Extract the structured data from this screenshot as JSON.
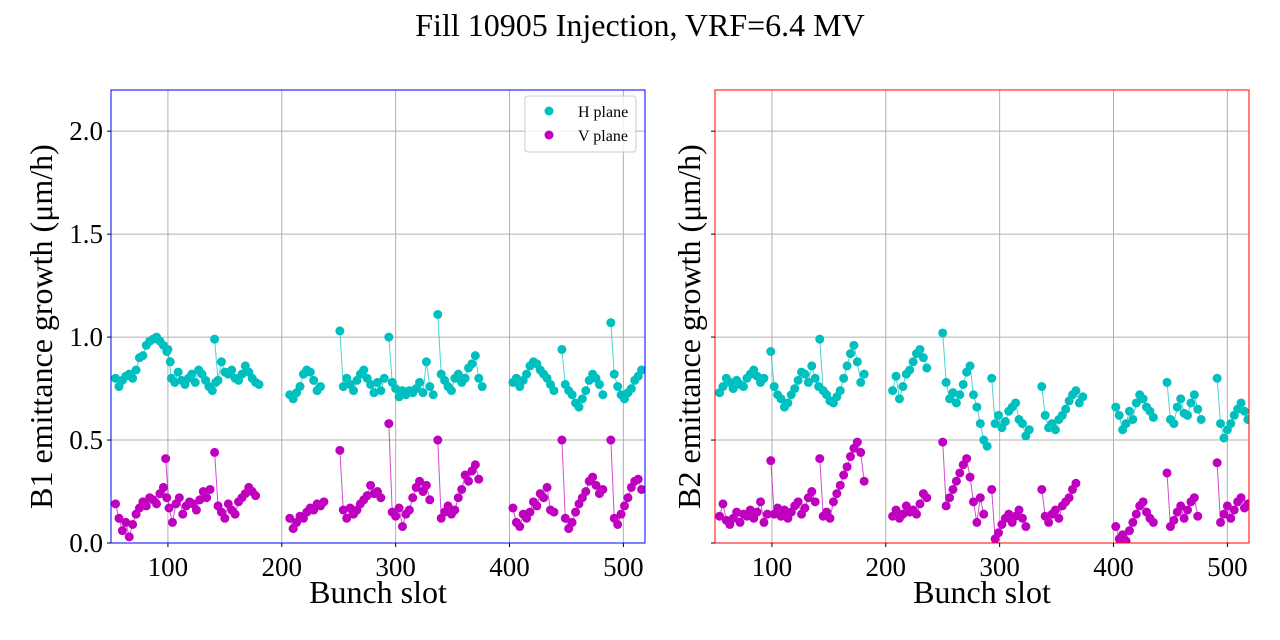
{
  "chart_data": {
    "type": "scatter",
    "title": "Fill 10905 Injection, VRF=6.4 MV",
    "colors": {
      "H plane": "#00bfbf",
      "V plane": "#bf00bf",
      "B1_frame": "#0000ff",
      "B2_frame": "#ff0000"
    },
    "panels": [
      {
        "name": "B1",
        "xlabel": "Bunch slot",
        "ylabel": "B1 emittance growth (μm/h)",
        "xlim": [
          50,
          519
        ],
        "ylim": [
          0.0,
          2.2
        ],
        "xticks": [
          "100",
          "200",
          "300",
          "400",
          "500"
        ],
        "xtick_values": [
          100,
          200,
          300,
          400,
          500
        ],
        "yticks": [
          "0.0",
          "0.5",
          "1.0",
          "1.5",
          "2.0"
        ],
        "ytick_values": [
          0.0,
          0.5,
          1.0,
          1.5,
          2.0
        ],
        "grid": true,
        "legend": {
          "position": "top-right",
          "entries": [
            "H plane",
            "V plane"
          ]
        },
        "series": [
          {
            "name": "H plane",
            "trains": [
              {
                "start": 54,
                "step": 3,
                "y": [
                  0.8,
                  0.76,
                  0.79,
                  0.81,
                  0.82,
                  0.8,
                  0.84,
                  0.9,
                  0.91,
                  0.96,
                  0.98,
                  0.99,
                  1.0,
                  0.98,
                  0.96,
                  0.93,
                  0.88
                ]
              },
              {
                "start": 100,
                "step": 3,
                "y": [
                  0.94,
                  0.8,
                  0.78,
                  0.83,
                  0.79,
                  0.77,
                  0.8,
                  0.82,
                  0.78,
                  0.84,
                  0.82,
                  0.79,
                  0.76,
                  0.74,
                  0.78
                ]
              },
              {
                "start": 141,
                "step": 3,
                "y": [
                  0.99,
                  0.79,
                  0.88,
                  0.83,
                  0.82,
                  0.84,
                  0.8,
                  0.79,
                  0.82,
                  0.86,
                  0.83,
                  0.8,
                  0.78,
                  0.77
                ]
              },
              {
                "start": 207,
                "step": 3,
                "y": [
                  0.72,
                  0.7,
                  0.73,
                  0.76,
                  0.82,
                  0.84,
                  0.83,
                  0.79,
                  0.74,
                  0.76
                ]
              },
              {
                "start": 251,
                "step": 3,
                "y": [
                  1.03,
                  0.76,
                  0.8,
                  0.77,
                  0.74,
                  0.79,
                  0.82,
                  0.84,
                  0.8,
                  0.77,
                  0.73,
                  0.78,
                  0.74,
                  0.8
                ]
              },
              {
                "start": 294,
                "step": 3,
                "y": [
                  1.0,
                  0.78,
                  0.75,
                  0.71,
                  0.74,
                  0.72,
                  0.74,
                  0.73,
                  0.75,
                  0.78,
                  0.73,
                  0.88,
                  0.76,
                  0.72
                ]
              },
              {
                "start": 337,
                "step": 3,
                "y": [
                  1.11,
                  0.82,
                  0.79,
                  0.76,
                  0.74,
                  0.8,
                  0.82,
                  0.78,
                  0.8,
                  0.85,
                  0.87,
                  0.91,
                  0.8,
                  0.76
                ]
              },
              {
                "start": 403,
                "step": 3,
                "y": [
                  0.78,
                  0.8,
                  0.76,
                  0.79,
                  0.82,
                  0.86,
                  0.88,
                  0.87,
                  0.84,
                  0.82,
                  0.8,
                  0.77,
                  0.74
                ]
              },
              {
                "start": 446,
                "step": 3,
                "y": [
                  0.94,
                  0.77,
                  0.74,
                  0.72,
                  0.68,
                  0.66,
                  0.7,
                  0.74,
                  0.79,
                  0.82,
                  0.8,
                  0.77,
                  0.72
                ]
              },
              {
                "start": 489,
                "step": 3,
                "y": [
                  1.07,
                  0.82,
                  0.76,
                  0.72,
                  0.7,
                  0.73,
                  0.75,
                  0.79,
                  0.81,
                  0.84
                ]
              }
            ]
          },
          {
            "name": "V plane",
            "trains": [
              {
                "start": 54,
                "step": 3,
                "y": [
                  0.19,
                  0.12,
                  0.06,
                  0.1,
                  0.03,
                  0.09,
                  0.14,
                  0.17,
                  0.2,
                  0.18,
                  0.22,
                  0.21,
                  0.19,
                  0.24,
                  0.27,
                  0.22
                ]
              },
              {
                "start": 98,
                "step": 3,
                "y": [
                  0.41,
                  0.17,
                  0.1,
                  0.19,
                  0.22,
                  0.14,
                  0.18,
                  0.2,
                  0.19,
                  0.16,
                  0.21,
                  0.25,
                  0.22,
                  0.26
                ]
              },
              {
                "start": 141,
                "step": 3,
                "y": [
                  0.44,
                  0.18,
                  0.15,
                  0.12,
                  0.19,
                  0.16,
                  0.14,
                  0.2,
                  0.22,
                  0.24,
                  0.27,
                  0.25,
                  0.23
                ]
              },
              {
                "start": 207,
                "step": 3,
                "y": [
                  0.12,
                  0.07,
                  0.1,
                  0.13,
                  0.12,
                  0.15,
                  0.17,
                  0.16,
                  0.19,
                  0.18,
                  0.2
                ]
              },
              {
                "start": 251,
                "step": 3,
                "y": [
                  0.45,
                  0.16,
                  0.12,
                  0.17,
                  0.14,
                  0.16,
                  0.19,
                  0.21,
                  0.23,
                  0.28,
                  0.24,
                  0.25,
                  0.22
                ]
              },
              {
                "start": 294,
                "step": 3,
                "y": [
                  0.58,
                  0.15,
                  0.13,
                  0.17,
                  0.08,
                  0.14,
                  0.16,
                  0.22,
                  0.27,
                  0.3,
                  0.25,
                  0.28,
                  0.21
                ]
              },
              {
                "start": 337,
                "step": 3,
                "y": [
                  0.5,
                  0.12,
                  0.15,
                  0.18,
                  0.14,
                  0.16,
                  0.22,
                  0.26,
                  0.33,
                  0.3,
                  0.35,
                  0.38,
                  0.31
                ]
              },
              {
                "start": 403,
                "step": 3,
                "y": [
                  0.17,
                  0.1,
                  0.08,
                  0.14,
                  0.12,
                  0.15,
                  0.2,
                  0.18,
                  0.24,
                  0.22,
                  0.27,
                  0.16,
                  0.15
                ]
              },
              {
                "start": 446,
                "step": 3,
                "y": [
                  0.5,
                  0.12,
                  0.07,
                  0.1,
                  0.15,
                  0.19,
                  0.22,
                  0.25,
                  0.3,
                  0.32,
                  0.28,
                  0.24,
                  0.26
                ]
              },
              {
                "start": 489,
                "step": 3,
                "y": [
                  0.5,
                  0.12,
                  0.09,
                  0.14,
                  0.18,
                  0.22,
                  0.27,
                  0.3,
                  0.31,
                  0.26
                ]
              }
            ]
          }
        ]
      },
      {
        "name": "B2",
        "xlabel": "Bunch slot",
        "ylabel": "B2 emittance growth (μm/h)",
        "xlim": [
          50,
          519
        ],
        "ylim": [
          0.0,
          2.2
        ],
        "xticks": [
          "100",
          "200",
          "300",
          "400",
          "500"
        ],
        "xtick_values": [
          100,
          200,
          300,
          400,
          500
        ],
        "yticks": [],
        "ytick_values": [
          0.0,
          0.5,
          1.0,
          1.5,
          2.0
        ],
        "grid": true,
        "series": [
          {
            "name": "H plane",
            "trains": [
              {
                "start": 54,
                "step": 3,
                "y": [
                  0.73,
                  0.76,
                  0.8,
                  0.78,
                  0.75,
                  0.79,
                  0.77,
                  0.76,
                  0.8,
                  0.82,
                  0.84,
                  0.81,
                  0.78,
                  0.8
                ]
              },
              {
                "start": 99,
                "step": 3,
                "y": [
                  0.93,
                  0.76,
                  0.72,
                  0.7,
                  0.66,
                  0.68,
                  0.72,
                  0.75,
                  0.79,
                  0.83,
                  0.82,
                  0.78,
                  0.86,
                  0.8,
                  0.76
                ]
              },
              {
                "start": 142,
                "step": 3,
                "y": [
                  0.99,
                  0.74,
                  0.72,
                  0.69,
                  0.68,
                  0.71,
                  0.74,
                  0.8,
                  0.86,
                  0.92,
                  0.96,
                  0.88,
                  0.78,
                  0.82
                ]
              },
              {
                "start": 206,
                "step": 3,
                "y": [
                  0.74,
                  0.81,
                  0.7,
                  0.76,
                  0.82,
                  0.84,
                  0.88,
                  0.92,
                  0.94,
                  0.9,
                  0.85
                ]
              },
              {
                "start": 250,
                "step": 3,
                "y": [
                  1.02,
                  0.78,
                  0.7,
                  0.73,
                  0.68,
                  0.72,
                  0.77,
                  0.83,
                  0.86,
                  0.72,
                  0.66,
                  0.58,
                  0.5,
                  0.47
                ]
              },
              {
                "start": 293,
                "step": 3,
                "y": [
                  0.8,
                  0.58,
                  0.62,
                  0.56,
                  0.59,
                  0.64,
                  0.66,
                  0.68,
                  0.6,
                  0.58,
                  0.52,
                  0.55
                ]
              },
              {
                "start": 337,
                "step": 3,
                "y": [
                  0.76,
                  0.62,
                  0.56,
                  0.58,
                  0.55,
                  0.6,
                  0.62,
                  0.65,
                  0.69,
                  0.72,
                  0.74,
                  0.68,
                  0.71
                ]
              },
              {
                "start": 402,
                "step": 3,
                "y": [
                  0.66,
                  0.62,
                  0.55,
                  0.58,
                  0.64,
                  0.6,
                  0.68,
                  0.72,
                  0.7,
                  0.66,
                  0.64,
                  0.61
                ]
              },
              {
                "start": 447,
                "step": 3,
                "y": [
                  0.78,
                  0.6,
                  0.58,
                  0.66,
                  0.7,
                  0.63,
                  0.62,
                  0.68,
                  0.72,
                  0.65,
                  0.6
                ]
              },
              {
                "start": 491,
                "step": 3,
                "y": [
                  0.8,
                  0.58,
                  0.51,
                  0.55,
                  0.58,
                  0.62,
                  0.65,
                  0.68,
                  0.64,
                  0.6
                ]
              }
            ]
          },
          {
            "name": "V plane",
            "trains": [
              {
                "start": 54,
                "step": 3,
                "y": [
                  0.13,
                  0.19,
                  0.11,
                  0.09,
                  0.12,
                  0.15,
                  0.1,
                  0.14,
                  0.13,
                  0.16,
                  0.12,
                  0.15,
                  0.2,
                  0.1,
                  0.14
                ]
              },
              {
                "start": 99,
                "step": 3,
                "y": [
                  0.4,
                  0.14,
                  0.17,
                  0.13,
                  0.16,
                  0.12,
                  0.15,
                  0.18,
                  0.2,
                  0.14,
                  0.17,
                  0.22,
                  0.25,
                  0.2
                ]
              },
              {
                "start": 142,
                "step": 3,
                "y": [
                  0.41,
                  0.13,
                  0.15,
                  0.12,
                  0.2,
                  0.24,
                  0.28,
                  0.33,
                  0.37,
                  0.42,
                  0.46,
                  0.49,
                  0.44,
                  0.3
                ]
              },
              {
                "start": 206,
                "step": 3,
                "y": [
                  0.13,
                  0.16,
                  0.12,
                  0.14,
                  0.18,
                  0.15,
                  0.16,
                  0.14,
                  0.19,
                  0.24,
                  0.22
                ]
              },
              {
                "start": 250,
                "step": 3,
                "y": [
                  0.49,
                  0.18,
                  0.22,
                  0.26,
                  0.3,
                  0.34,
                  0.38,
                  0.41,
                  0.32,
                  0.2,
                  0.1,
                  0.22,
                  0.14
                ]
              },
              {
                "start": 293,
                "step": 3,
                "y": [
                  0.26,
                  0.02,
                  0.05,
                  0.09,
                  0.12,
                  0.14,
                  0.1,
                  0.13,
                  0.16,
                  0.12,
                  0.08
                ]
              },
              {
                "start": 337,
                "step": 3,
                "y": [
                  0.26,
                  0.13,
                  0.1,
                  0.14,
                  0.16,
                  0.12,
                  0.18,
                  0.2,
                  0.22,
                  0.26,
                  0.29
                ]
              },
              {
                "start": 402,
                "step": 3,
                "y": [
                  0.08,
                  0.02,
                  0.04,
                  0.01,
                  0.06,
                  0.1,
                  0.14,
                  0.18,
                  0.2,
                  0.15,
                  0.12,
                  0.1
                ]
              },
              {
                "start": 447,
                "step": 3,
                "y": [
                  0.34,
                  0.08,
                  0.11,
                  0.15,
                  0.18,
                  0.12,
                  0.16,
                  0.2,
                  0.22,
                  0.13
                ]
              },
              {
                "start": 491,
                "step": 3,
                "y": [
                  0.39,
                  0.1,
                  0.14,
                  0.18,
                  0.12,
                  0.16,
                  0.2,
                  0.22,
                  0.17,
                  0.19
                ]
              }
            ]
          }
        ]
      }
    ]
  }
}
